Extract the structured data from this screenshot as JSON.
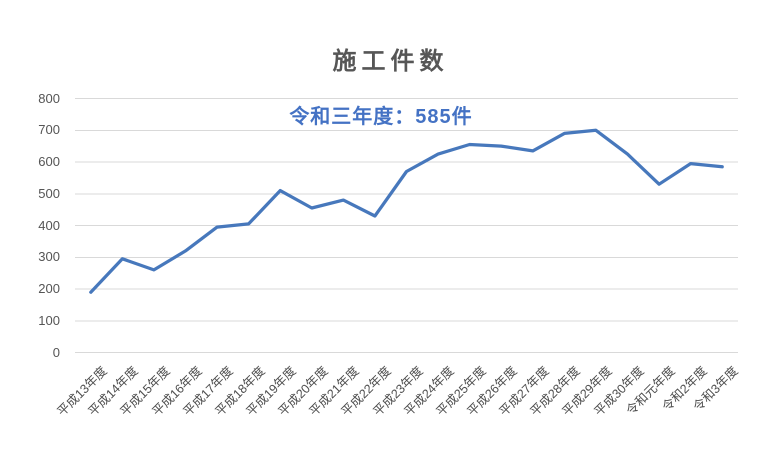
{
  "chart_data": {
    "type": "line",
    "title": "施工件数",
    "annotation": "令和三年度：585件",
    "categories": [
      "平成13年度",
      "平成14年度",
      "平成15年度",
      "平成16年度",
      "平成17年度",
      "平成18年度",
      "平成19年度",
      "平成20年度",
      "平成21年度",
      "平成22年度",
      "平成23年度",
      "平成24年度",
      "平成25年度",
      "平成26年度",
      "平成27年度",
      "平成28年度",
      "平成29年度",
      "平成30年度",
      "令和元年度",
      "令和2年度",
      "令和3年度"
    ],
    "series": [
      {
        "name": "施工件数",
        "values": [
          190,
          295,
          260,
          320,
          395,
          405,
          510,
          455,
          480,
          430,
          570,
          625,
          655,
          650,
          635,
          690,
          700,
          625,
          530,
          595,
          585
        ]
      }
    ],
    "xlabel": "",
    "ylabel": "",
    "ylim": [
      0,
      800
    ],
    "ytick_interval": 100,
    "yticks": [
      0,
      100,
      200,
      300,
      400,
      500,
      600,
      700,
      800
    ],
    "grid": "horizontal-only",
    "legend": "none",
    "x_label_rotation_deg": 45,
    "colors": {
      "line": "#4778BC",
      "annotation_text": "#4472C4",
      "title_text": "#565656",
      "axis_text": "#4d4d4d",
      "gridline": "#D9D9D9",
      "background": "#ffffff"
    }
  }
}
